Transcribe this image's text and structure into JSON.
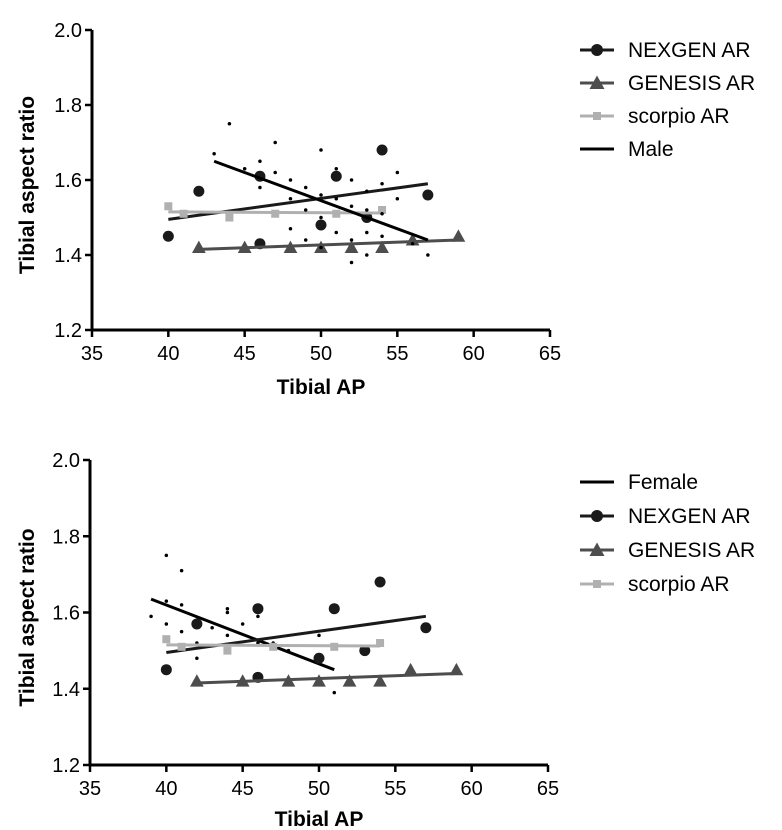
{
  "chart_data": [
    {
      "type": "scatter",
      "title": "",
      "xlabel": "Tibial AP",
      "ylabel": "Tibial aspect ratio",
      "xlim": [
        35,
        65
      ],
      "ylim": [
        1.2,
        2.0
      ],
      "xticks": [
        "35",
        "40",
        "45",
        "50",
        "55",
        "60",
        "65"
      ],
      "yticks": [
        "1.2",
        "1.4",
        "1.6",
        "1.8",
        "2.0"
      ],
      "legend_position": "right",
      "grid": false,
      "series": [
        {
          "name": "NEXGEN AR",
          "marker": "circle",
          "color": "#1a1a1a",
          "points": [
            [
              40,
              1.45
            ],
            [
              42,
              1.57
            ],
            [
              46,
              1.43
            ],
            [
              46,
              1.61
            ],
            [
              50,
              1.48
            ],
            [
              51,
              1.61
            ],
            [
              53,
              1.5
            ],
            [
              54,
              1.68
            ],
            [
              57,
              1.56
            ]
          ],
          "fit": [
            [
              40,
              1.495
            ],
            [
              57,
              1.59
            ]
          ]
        },
        {
          "name": "GENESIS AR",
          "marker": "triangle",
          "color": "#4d4d4d",
          "points": [
            [
              42,
              1.42
            ],
            [
              45,
              1.42
            ],
            [
              48,
              1.42
            ],
            [
              50,
              1.42
            ],
            [
              52,
              1.42
            ],
            [
              54,
              1.42
            ],
            [
              56,
              1.44
            ],
            [
              59,
              1.45
            ]
          ],
          "fit": [
            [
              42,
              1.415
            ],
            [
              59,
              1.44
            ]
          ]
        },
        {
          "name": "scorpio AR",
          "marker": "square",
          "color": "#b0b0b0",
          "points": [
            [
              40,
              1.53
            ],
            [
              41,
              1.51
            ],
            [
              44,
              1.5
            ],
            [
              47,
              1.51
            ],
            [
              51,
              1.51
            ],
            [
              54,
              1.52
            ]
          ],
          "fit": [
            [
              40,
              1.515
            ],
            [
              54,
              1.512
            ]
          ]
        },
        {
          "name": "Male",
          "marker": "dot",
          "color": "#000000",
          "points": [
            [
              43,
              1.67
            ],
            [
              44,
              1.75
            ],
            [
              45,
              1.63
            ],
            [
              46,
              1.65
            ],
            [
              46,
              1.58
            ],
            [
              47,
              1.7
            ],
            [
              47,
              1.62
            ],
            [
              48,
              1.6
            ],
            [
              48,
              1.55
            ],
            [
              48,
              1.47
            ],
            [
              49,
              1.58
            ],
            [
              49,
              1.52
            ],
            [
              49,
              1.44
            ],
            [
              50,
              1.68
            ],
            [
              50,
              1.56
            ],
            [
              50,
              1.5
            ],
            [
              50,
              1.42
            ],
            [
              51,
              1.55
            ],
            [
              51,
              1.63
            ],
            [
              51,
              1.46
            ],
            [
              52,
              1.6
            ],
            [
              52,
              1.53
            ],
            [
              52,
              1.44
            ],
            [
              52,
              1.38
            ],
            [
              53,
              1.57
            ],
            [
              53,
              1.52
            ],
            [
              53,
              1.46
            ],
            [
              53,
              1.4
            ],
            [
              54,
              1.59
            ],
            [
              54,
              1.51
            ],
            [
              54,
              1.45
            ],
            [
              55,
              1.62
            ],
            [
              55,
              1.55
            ],
            [
              56,
              1.43
            ],
            [
              57,
              1.4
            ]
          ],
          "fit": [
            [
              43,
              1.65
            ],
            [
              57,
              1.44
            ]
          ]
        }
      ]
    },
    {
      "type": "scatter",
      "title": "",
      "xlabel": "Tibial AP",
      "ylabel": "Tibial aspect ratio",
      "xlim": [
        35,
        65
      ],
      "ylim": [
        1.2,
        2.0
      ],
      "xticks": [
        "35",
        "40",
        "45",
        "50",
        "55",
        "60",
        "65"
      ],
      "yticks": [
        "1.2",
        "1.4",
        "1.6",
        "1.8",
        "2.0"
      ],
      "legend_position": "right",
      "grid": false,
      "series": [
        {
          "name": "Female",
          "marker": "dot",
          "color": "#000000",
          "points": [
            [
              39,
              1.59
            ],
            [
              40,
              1.75
            ],
            [
              40,
              1.63
            ],
            [
              40,
              1.57
            ],
            [
              41,
              1.71
            ],
            [
              41,
              1.62
            ],
            [
              41,
              1.55
            ],
            [
              42,
              1.58
            ],
            [
              42,
              1.52
            ],
            [
              42,
              1.48
            ],
            [
              43,
              1.56
            ],
            [
              44,
              1.61
            ],
            [
              44,
              1.6
            ],
            [
              44,
              1.54
            ],
            [
              44,
              1.5
            ],
            [
              45,
              1.57
            ],
            [
              46,
              1.59
            ],
            [
              46,
              1.52
            ],
            [
              47,
              1.52
            ],
            [
              48,
              1.5
            ],
            [
              50,
              1.54
            ],
            [
              50,
              1.47
            ],
            [
              51,
              1.39
            ]
          ],
          "fit": [
            [
              39,
              1.635
            ],
            [
              51,
              1.45
            ]
          ]
        },
        {
          "name": "NEXGEN AR",
          "marker": "circle",
          "color": "#1a1a1a",
          "points": [
            [
              40,
              1.45
            ],
            [
              42,
              1.57
            ],
            [
              46,
              1.43
            ],
            [
              46,
              1.61
            ],
            [
              50,
              1.48
            ],
            [
              51,
              1.61
            ],
            [
              53,
              1.5
            ],
            [
              54,
              1.68
            ],
            [
              57,
              1.56
            ]
          ],
          "fit": [
            [
              40,
              1.495
            ],
            [
              57,
              1.59
            ]
          ]
        },
        {
          "name": "GENESIS AR",
          "marker": "triangle",
          "color": "#4d4d4d",
          "points": [
            [
              42,
              1.42
            ],
            [
              45,
              1.42
            ],
            [
              48,
              1.42
            ],
            [
              50,
              1.42
            ],
            [
              52,
              1.42
            ],
            [
              54,
              1.42
            ],
            [
              56,
              1.45
            ],
            [
              59,
              1.45
            ]
          ],
          "fit": [
            [
              42,
              1.415
            ],
            [
              59,
              1.44
            ]
          ]
        },
        {
          "name": "scorpio AR",
          "marker": "square",
          "color": "#b0b0b0",
          "points": [
            [
              40,
              1.53
            ],
            [
              41,
              1.51
            ],
            [
              44,
              1.5
            ],
            [
              47,
              1.51
            ],
            [
              51,
              1.51
            ],
            [
              54,
              1.52
            ]
          ],
          "fit": [
            [
              40,
              1.515
            ],
            [
              54,
              1.512
            ]
          ]
        }
      ]
    }
  ]
}
